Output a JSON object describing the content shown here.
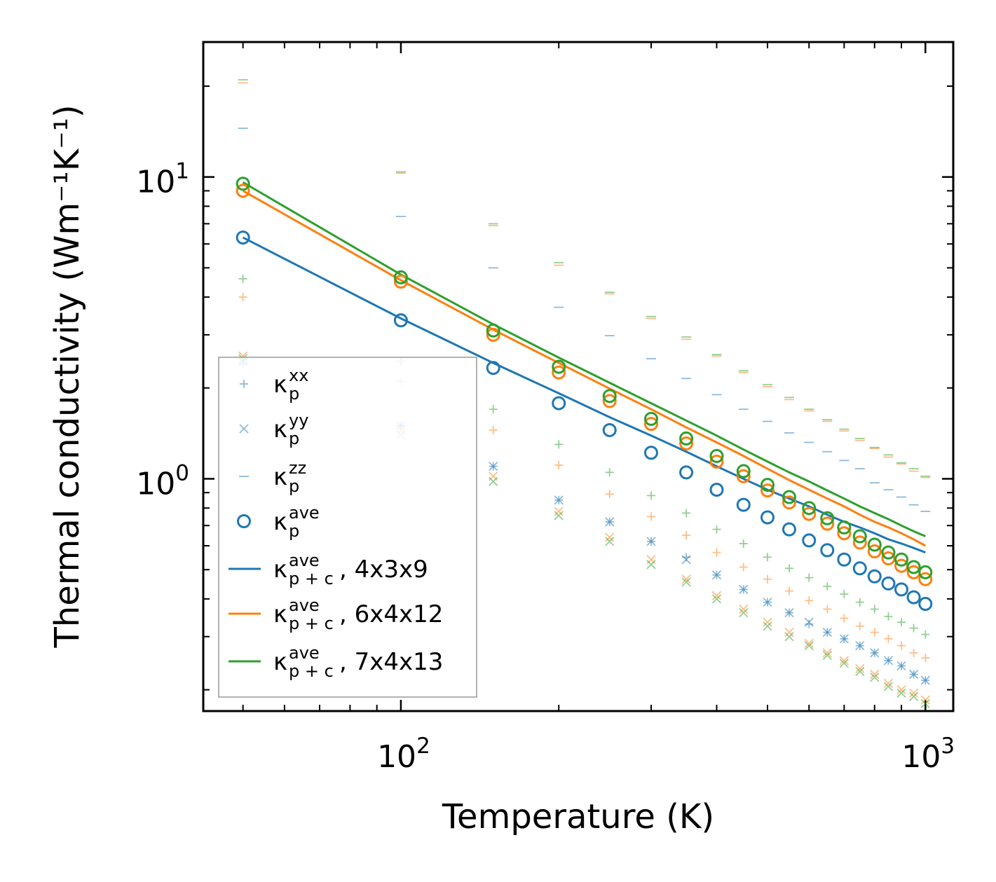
{
  "chart_data": {
    "type": "scatter",
    "x_scale": "log",
    "y_scale": "log",
    "xlabel": "Temperature (K)",
    "ylabel": "Thermal conductivity (Wm⁻¹K⁻¹)",
    "xlim": [
      42,
      1130
    ],
    "ylim": [
      0.17,
      28
    ],
    "x_ticks": [
      {
        "value": 100,
        "base": "10",
        "exp": "2"
      },
      {
        "value": 1000,
        "base": "10",
        "exp": "3"
      }
    ],
    "y_ticks": [
      {
        "value": 1,
        "base": "10",
        "exp": "0"
      },
      {
        "value": 10,
        "base": "10",
        "exp": "1"
      }
    ],
    "colors": {
      "c4x3x9": "#1f77b4",
      "c6x4x12": "#ff7f0e",
      "c7x4x13": "#2ca02c"
    },
    "x": [
      50,
      100,
      150,
      200,
      250,
      300,
      350,
      400,
      450,
      500,
      550,
      600,
      650,
      700,
      750,
      800,
      850,
      900,
      950,
      1000
    ],
    "groups": [
      {
        "name": "4x3x9",
        "color": "#1f77b4",
        "k_xx": [
          2.4,
          1.5,
          1.1,
          0.85,
          0.72,
          0.62,
          0.55,
          0.48,
          0.43,
          0.39,
          0.36,
          0.33,
          0.31,
          0.295,
          0.28,
          0.265,
          0.25,
          0.24,
          0.225,
          0.215
        ],
        "k_yy": [
          2.45,
          1.5,
          1.1,
          0.85,
          0.72,
          0.62,
          0.54,
          0.48,
          0.43,
          0.39,
          0.36,
          0.335,
          0.31,
          0.295,
          0.28,
          0.265,
          0.25,
          0.24,
          0.225,
          0.215
        ],
        "k_zz": [
          14.5,
          7.4,
          5.0,
          3.7,
          2.98,
          2.5,
          2.15,
          1.9,
          1.7,
          1.55,
          1.42,
          1.32,
          1.23,
          1.15,
          1.08,
          0.97,
          0.92,
          0.87,
          0.82,
          0.78
        ],
        "k_ave": [
          6.3,
          3.35,
          2.33,
          1.78,
          1.45,
          1.22,
          1.05,
          0.92,
          0.82,
          0.745,
          0.68,
          0.625,
          0.58,
          0.54,
          0.505,
          0.475,
          0.45,
          0.43,
          0.405,
          0.385
        ],
        "k_pc": [
          6.3,
          3.4,
          2.42,
          1.92,
          1.6,
          1.39,
          1.23,
          1.1,
          1.0,
          0.92,
          0.86,
          0.81,
          0.76,
          0.72,
          0.69,
          0.66,
          0.63,
          0.61,
          0.59,
          0.57
        ]
      },
      {
        "name": "6x4x12",
        "color": "#ff7f0e",
        "k_xx": [
          4.0,
          2.1,
          1.45,
          1.11,
          0.89,
          0.75,
          0.65,
          0.57,
          0.51,
          0.465,
          0.425,
          0.395,
          0.37,
          0.345,
          0.325,
          0.31,
          0.295,
          0.28,
          0.265,
          0.255
        ],
        "k_yy": [
          2.55,
          1.45,
          1.02,
          0.78,
          0.64,
          0.54,
          0.465,
          0.41,
          0.37,
          0.335,
          0.31,
          0.285,
          0.265,
          0.25,
          0.235,
          0.225,
          0.21,
          0.2,
          0.195,
          0.185
        ],
        "k_zz": [
          20.5,
          10.3,
          6.9,
          5.1,
          4.1,
          3.4,
          2.9,
          2.55,
          2.25,
          2.02,
          1.83,
          1.68,
          1.55,
          1.44,
          1.34,
          1.26,
          1.18,
          1.12,
          1.06,
          1.01
        ],
        "k_ave": [
          9.0,
          4.5,
          3.0,
          2.25,
          1.81,
          1.52,
          1.31,
          1.14,
          1.02,
          0.915,
          0.835,
          0.765,
          0.71,
          0.66,
          0.615,
          0.575,
          0.545,
          0.515,
          0.49,
          0.465
        ],
        "k_pc": [
          9.0,
          4.55,
          3.12,
          2.42,
          1.99,
          1.7,
          1.48,
          1.32,
          1.19,
          1.08,
          0.99,
          0.92,
          0.86,
          0.81,
          0.76,
          0.72,
          0.69,
          0.66,
          0.63,
          0.6
        ]
      },
      {
        "name": "7x4x13",
        "color": "#2ca02c",
        "k_xx": [
          4.6,
          2.45,
          1.7,
          1.3,
          1.05,
          0.88,
          0.77,
          0.68,
          0.61,
          0.55,
          0.505,
          0.47,
          0.44,
          0.415,
          0.39,
          0.37,
          0.35,
          0.335,
          0.32,
          0.305
        ],
        "k_yy": [
          2.5,
          1.4,
          0.98,
          0.755,
          0.62,
          0.52,
          0.455,
          0.4,
          0.36,
          0.325,
          0.3,
          0.28,
          0.26,
          0.245,
          0.23,
          0.22,
          0.205,
          0.195,
          0.19,
          0.18
        ],
        "k_zz": [
          21.0,
          10.4,
          7.0,
          5.2,
          4.15,
          3.45,
          2.95,
          2.58,
          2.28,
          2.05,
          1.86,
          1.7,
          1.57,
          1.46,
          1.36,
          1.27,
          1.2,
          1.13,
          1.08,
          1.02
        ],
        "k_ave": [
          9.5,
          4.65,
          3.1,
          2.35,
          1.88,
          1.58,
          1.36,
          1.19,
          1.06,
          0.955,
          0.87,
          0.8,
          0.74,
          0.69,
          0.645,
          0.605,
          0.57,
          0.54,
          0.51,
          0.49
        ],
        "k_pc": [
          9.6,
          4.75,
          3.25,
          2.52,
          2.08,
          1.78,
          1.56,
          1.39,
          1.25,
          1.14,
          1.05,
          0.98,
          0.915,
          0.86,
          0.81,
          0.77,
          0.735,
          0.7,
          0.67,
          0.645
        ]
      }
    ],
    "legend": {
      "position": "lower-left",
      "entries": [
        {
          "marker": "plus",
          "color": "#1f77b4",
          "base": "κ",
          "sub": "p",
          "sup": "xx",
          "suffix": ""
        },
        {
          "marker": "x",
          "color": "#1f77b4",
          "base": "κ",
          "sub": "p",
          "sup": "yy",
          "suffix": ""
        },
        {
          "marker": "hline",
          "color": "#1f77b4",
          "base": "κ",
          "sub": "p",
          "sup": "zz",
          "suffix": ""
        },
        {
          "marker": "circle",
          "color": "#1f77b4",
          "base": "κ",
          "sub": "p",
          "sup": "ave",
          "suffix": ""
        },
        {
          "marker": "line",
          "color": "#1f77b4",
          "base": "κ",
          "sub": "p + c",
          "sup": "ave",
          "suffix": ", 4x3x9"
        },
        {
          "marker": "line",
          "color": "#ff7f0e",
          "base": "κ",
          "sub": "p + c",
          "sup": "ave",
          "suffix": ", 6x4x12"
        },
        {
          "marker": "line",
          "color": "#2ca02c",
          "base": "κ",
          "sub": "p + c",
          "sup": "ave",
          "suffix": ", 7x4x13"
        }
      ]
    }
  }
}
